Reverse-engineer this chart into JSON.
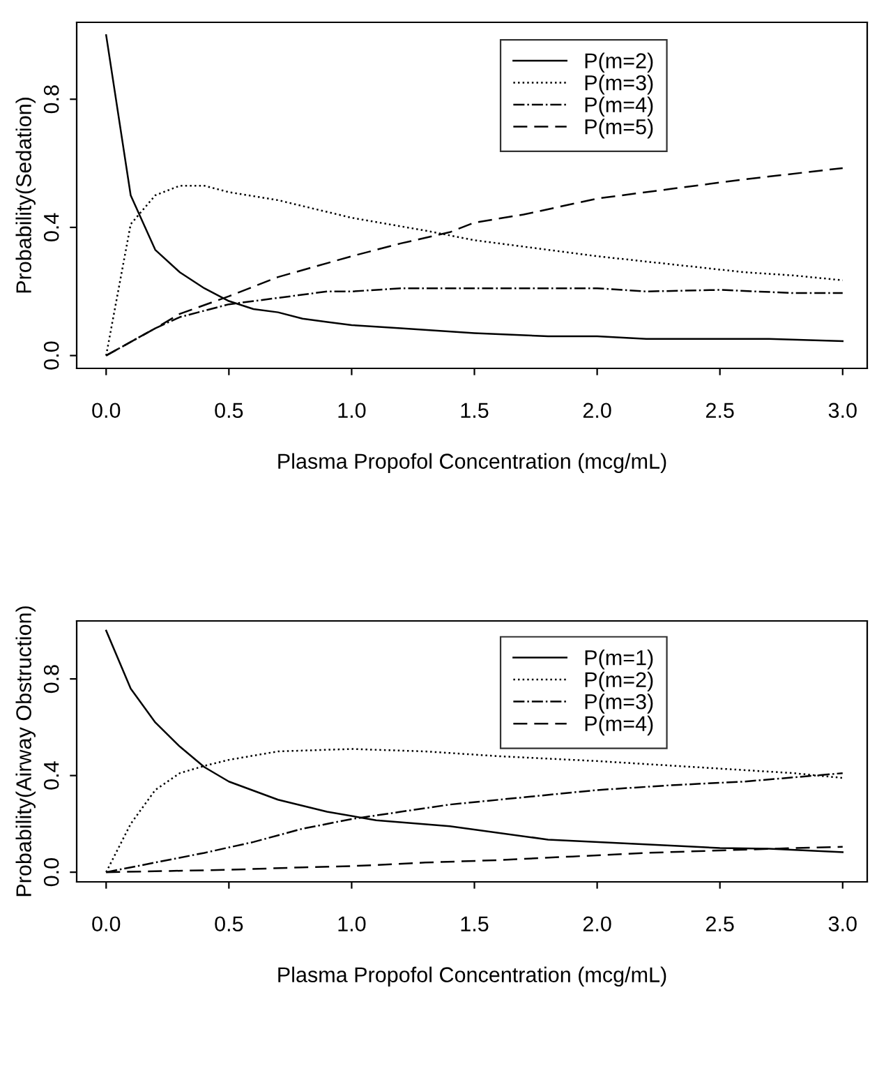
{
  "chart_data": [
    {
      "type": "line",
      "xlabel": "Plasma Propofol Concentration (mcg/mL)",
      "ylabel": "Probability(Sedation)",
      "xlim": [
        -0.12,
        3.1
      ],
      "ylim": [
        -0.04,
        1.04
      ],
      "xticks": [
        {
          "value": 0,
          "label": "0.0"
        },
        {
          "value": 0.5,
          "label": "0.5"
        },
        {
          "value": 1,
          "label": "1.0"
        },
        {
          "value": 1.5,
          "label": "1.5"
        },
        {
          "value": 2,
          "label": "2.0"
        },
        {
          "value": 2.5,
          "label": "2.5"
        },
        {
          "value": 3,
          "label": "3.0"
        }
      ],
      "yticks": [
        {
          "value": 0,
          "label": "0.0"
        },
        {
          "value": 0.4,
          "label": "0.4"
        },
        {
          "value": 0.8,
          "label": "0.8"
        }
      ],
      "grid": false,
      "legend": "top right",
      "marker": "none",
      "series": [
        {
          "name": "P(m=2)",
          "color": "#000000",
          "line_style": "solid",
          "x": [
            0,
            0.1,
            0.2,
            0.3,
            0.4,
            0.5,
            0.6,
            0.7,
            0.8,
            0.9,
            1.0,
            1.2,
            1.5,
            1.8,
            2.0,
            2.2,
            2.5,
            2.7,
            3.0
          ],
          "values": [
            1.0,
            0.5,
            0.33,
            0.26,
            0.21,
            0.17,
            0.145,
            0.135,
            0.115,
            0.105,
            0.095,
            0.085,
            0.07,
            0.06,
            0.06,
            0.052,
            0.052,
            0.052,
            0.045
          ]
        },
        {
          "name": "P(m=3)",
          "color": "#000000",
          "line_style": "dotted",
          "x": [
            0,
            0.1,
            0.2,
            0.3,
            0.4,
            0.5,
            0.7,
            1.0,
            1.3,
            1.5,
            1.8,
            2.0,
            2.3,
            2.6,
            2.8,
            3.0
          ],
          "values": [
            0,
            0.41,
            0.5,
            0.53,
            0.53,
            0.51,
            0.485,
            0.43,
            0.39,
            0.36,
            0.33,
            0.31,
            0.285,
            0.26,
            0.25,
            0.235
          ]
        },
        {
          "name": "P(m=4)",
          "color": "#000000",
          "line_style": "dashdot",
          "x": [
            0,
            0.2,
            0.3,
            0.5,
            0.7,
            0.9,
            1.0,
            1.2,
            1.5,
            2.0,
            2.2,
            2.5,
            2.8,
            3.0
          ],
          "values": [
            0,
            0.085,
            0.12,
            0.16,
            0.18,
            0.2,
            0.2,
            0.21,
            0.21,
            0.21,
            0.2,
            0.205,
            0.195,
            0.195
          ]
        },
        {
          "name": "P(m=5)",
          "color": "#000000",
          "line_style": "dashed",
          "x": [
            0,
            0.2,
            0.3,
            0.5,
            0.7,
            1.0,
            1.2,
            1.4,
            1.5,
            1.7,
            2.0,
            2.3,
            2.6,
            3.0
          ],
          "values": [
            0,
            0.085,
            0.13,
            0.185,
            0.245,
            0.31,
            0.35,
            0.385,
            0.415,
            0.44,
            0.49,
            0.52,
            0.55,
            0.585
          ]
        }
      ]
    },
    {
      "type": "line",
      "xlabel": "Plasma Propofol Concentration (mcg/mL)",
      "ylabel": "Probability(Airway Obstruction)",
      "xlim": [
        -0.12,
        3.1
      ],
      "ylim": [
        -0.04,
        1.04
      ],
      "xticks": [
        {
          "value": 0,
          "label": "0.0"
        },
        {
          "value": 0.5,
          "label": "0.5"
        },
        {
          "value": 1,
          "label": "1.0"
        },
        {
          "value": 1.5,
          "label": "1.5"
        },
        {
          "value": 2,
          "label": "2.0"
        },
        {
          "value": 2.5,
          "label": "2.5"
        },
        {
          "value": 3,
          "label": "3.0"
        }
      ],
      "yticks": [
        {
          "value": 0,
          "label": "0.0"
        },
        {
          "value": 0.4,
          "label": "0.4"
        },
        {
          "value": 0.8,
          "label": "0.8"
        }
      ],
      "grid": false,
      "legend": "top right",
      "marker": "none",
      "series": [
        {
          "name": "P(m=1)",
          "color": "#000000",
          "line_style": "solid",
          "x": [
            0,
            0.1,
            0.2,
            0.3,
            0.4,
            0.5,
            0.7,
            0.9,
            1.1,
            1.4,
            1.8,
            2.3,
            2.5,
            2.7,
            3.0
          ],
          "values": [
            1.0,
            0.76,
            0.62,
            0.52,
            0.435,
            0.375,
            0.3,
            0.25,
            0.215,
            0.19,
            0.135,
            0.11,
            0.1,
            0.097,
            0.083
          ]
        },
        {
          "name": "P(m=2)",
          "color": "#000000",
          "line_style": "dotted",
          "x": [
            0,
            0.1,
            0.2,
            0.3,
            0.4,
            0.5,
            0.7,
            1.0,
            1.3,
            1.6,
            2.0,
            2.4,
            2.8,
            3.0
          ],
          "values": [
            0,
            0.2,
            0.34,
            0.41,
            0.44,
            0.465,
            0.5,
            0.51,
            0.5,
            0.48,
            0.46,
            0.435,
            0.41,
            0.39
          ]
        },
        {
          "name": "P(m=3)",
          "color": "#000000",
          "line_style": "dashdot",
          "x": [
            0,
            0.2,
            0.4,
            0.6,
            0.8,
            1.0,
            1.2,
            1.4,
            1.7,
            2.0,
            2.3,
            2.6,
            3.0
          ],
          "values": [
            0,
            0.04,
            0.08,
            0.125,
            0.18,
            0.22,
            0.25,
            0.28,
            0.31,
            0.34,
            0.36,
            0.375,
            0.41
          ]
        },
        {
          "name": "P(m=4)",
          "color": "#000000",
          "line_style": "dashed",
          "x": [
            0,
            0.5,
            0.8,
            1.0,
            1.3,
            1.6,
            1.9,
            2.2,
            2.5,
            2.8,
            3.0
          ],
          "values": [
            0,
            0.01,
            0.02,
            0.025,
            0.04,
            0.05,
            0.065,
            0.08,
            0.09,
            0.1,
            0.105
          ]
        }
      ]
    }
  ]
}
